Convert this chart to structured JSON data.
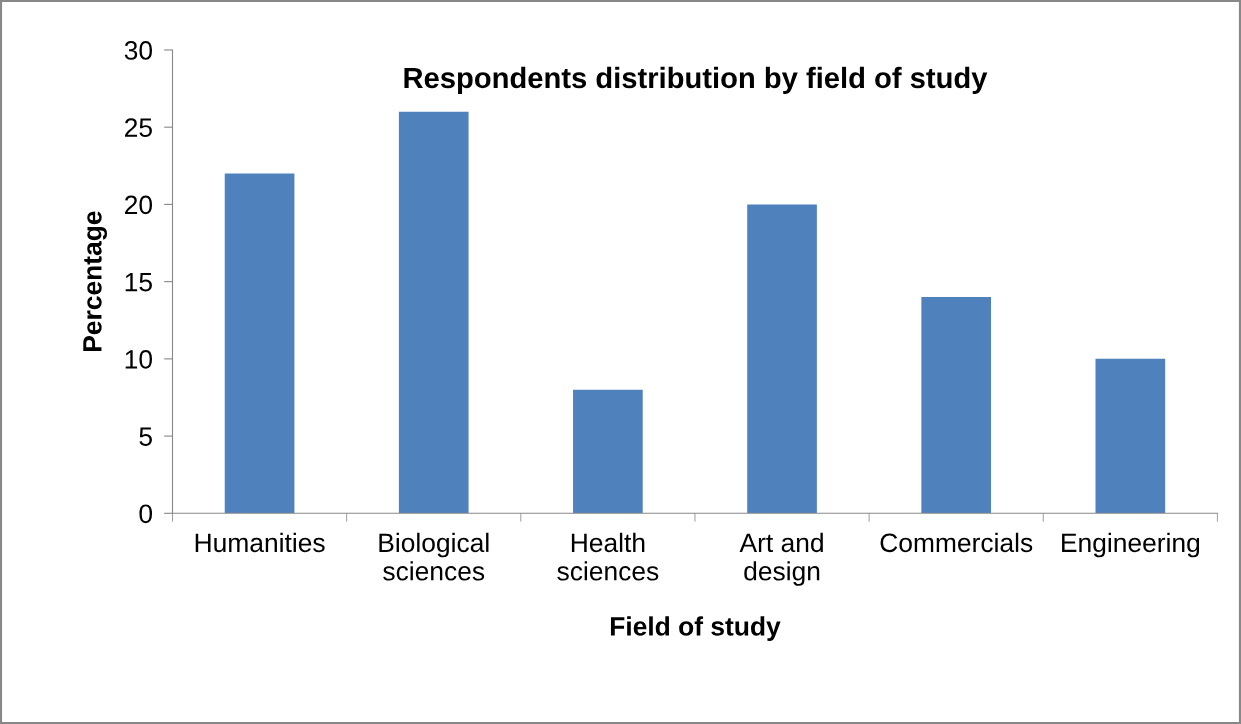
{
  "chart_data": {
    "type": "bar",
    "title": "Respondents distribution by field of study",
    "xlabel": "Field of study",
    "ylabel": "Percentage",
    "categories": [
      "Humanities",
      "Biological\nsciences",
      "Health\nsciences",
      "Art and\ndesign",
      "Commercials",
      "Engineering"
    ],
    "values": [
      22,
      26,
      8,
      20,
      14,
      10
    ],
    "color": "#4f81bd",
    "ylim": [
      0,
      30
    ],
    "yticks": [
      0,
      5,
      10,
      15,
      20,
      25,
      30
    ],
    "grid": false,
    "legend": false
  }
}
